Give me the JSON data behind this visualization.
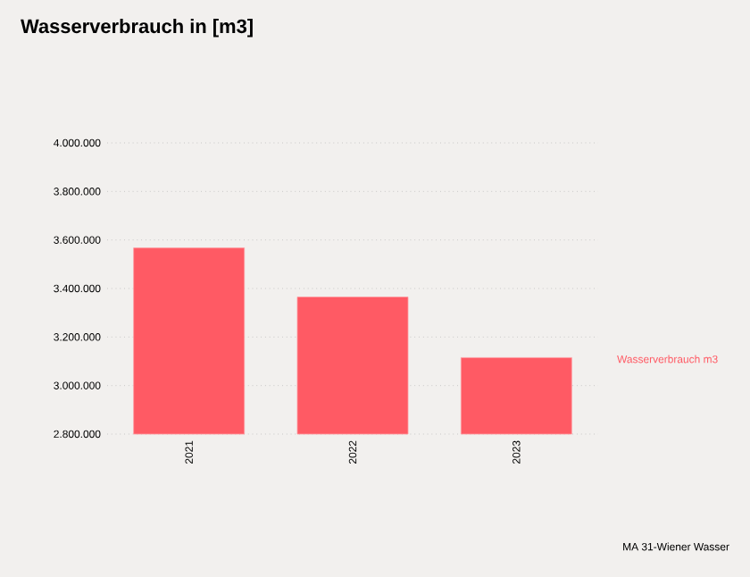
{
  "chart_data": {
    "type": "bar",
    "title": "Wasserverbrauch in [m3]",
    "categories": [
      "2021",
      "2022",
      "2023"
    ],
    "series": [
      {
        "name": "Wasserverbrauch m3",
        "color": "#ff5a64",
        "values": [
          3567000,
          3365000,
          3115000
        ]
      }
    ],
    "ylim": [
      2800000,
      4000000
    ],
    "yticks": [
      {
        "value": 2800000,
        "label": "2.800.000"
      },
      {
        "value": 3000000,
        "label": "3.000.000"
      },
      {
        "value": 3200000,
        "label": "3.200.000"
      },
      {
        "value": 3400000,
        "label": "3.400.000"
      },
      {
        "value": 3600000,
        "label": "3.600.000"
      },
      {
        "value": 3800000,
        "label": "3.800.000"
      },
      {
        "value": 4000000,
        "label": "4.000.000"
      }
    ],
    "grid": "y",
    "annotations": [
      "MA 31-Wiener Wasser"
    ]
  }
}
